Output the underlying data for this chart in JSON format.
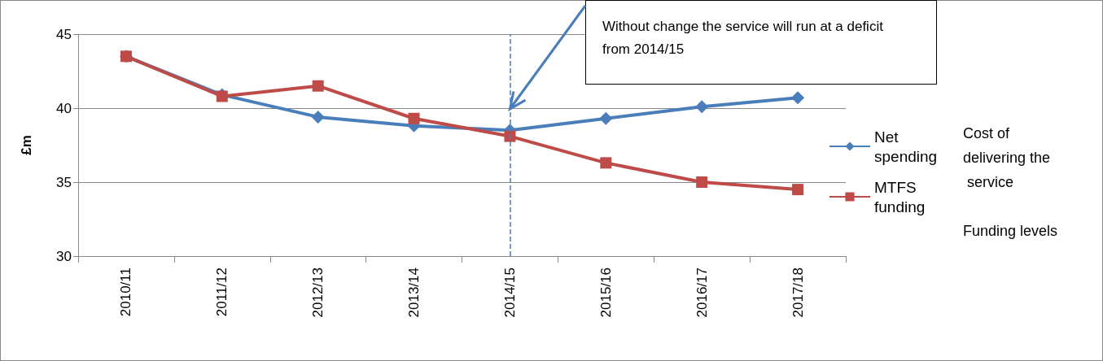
{
  "chart_data": {
    "type": "line",
    "ylabel": "£m",
    "categories": [
      "2010/11",
      "2011/12",
      "2012/13",
      "2013/14",
      "2014/15",
      "2015/16",
      "2016/17",
      "2017/18"
    ],
    "series": [
      {
        "name": "Net spending",
        "color": "#4a7ebb",
        "marker": "diamond",
        "values": [
          43.5,
          40.9,
          39.4,
          38.8,
          38.5,
          39.3,
          40.1,
          40.7
        ]
      },
      {
        "name": "MTFS funding",
        "color": "#be4b48",
        "marker": "square",
        "values": [
          43.5,
          40.8,
          41.5,
          39.3,
          38.1,
          36.3,
          35.0,
          34.5
        ]
      }
    ],
    "ylim": [
      30,
      45
    ],
    "yticks": [
      30,
      35,
      40,
      45
    ],
    "grid": "y",
    "legend": "right",
    "ref_lines": [
      {
        "axis": "x",
        "value": "2014/15",
        "color": "#4a7ebb",
        "line_style": "dashed"
      }
    ],
    "annotations": [
      "Without change the service will run at a deficit from 2014/15",
      "Cost of delivering the service",
      "Funding levels"
    ]
  }
}
